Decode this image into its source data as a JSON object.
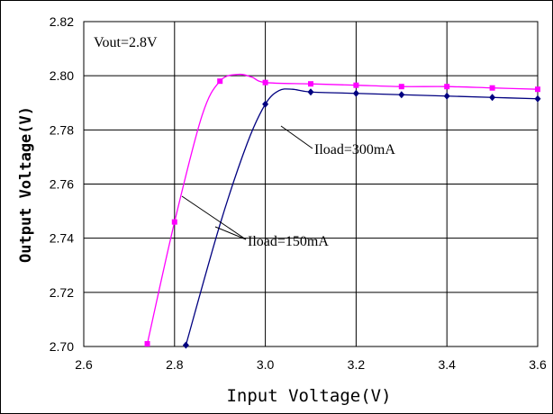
{
  "chart_data": {
    "type": "line",
    "title": "",
    "xlabel": "Input Voltage(V)",
    "ylabel": "Output Voltage(V)",
    "xlim": [
      2.6,
      3.6
    ],
    "ylim": [
      2.7,
      2.82
    ],
    "x_ticks": [
      "2.6",
      "2.8",
      "3.0",
      "3.2",
      "3.4",
      "3.6"
    ],
    "y_ticks": [
      "2.70",
      "2.72",
      "2.74",
      "2.76",
      "2.78",
      "2.80",
      "2.82"
    ],
    "grid": true,
    "annotations": {
      "vout": "Vout=2.8V",
      "iload_300": "Iload=300mA",
      "iload_150": "Iload=150mA"
    },
    "series": [
      {
        "color": "#ff00ff",
        "marker": "square",
        "points": [
          [
            2.74,
            2.701
          ],
          [
            2.8,
            2.746
          ],
          [
            2.9,
            2.798
          ],
          [
            3.0,
            2.7975
          ],
          [
            3.1,
            2.797
          ],
          [
            3.2,
            2.7965
          ],
          [
            3.3,
            2.796
          ],
          [
            3.4,
            2.796
          ],
          [
            3.5,
            2.7955
          ],
          [
            3.6,
            2.795
          ]
        ],
        "curve": [
          [
            2.74,
            2.701
          ],
          [
            2.8,
            2.746
          ],
          [
            2.86,
            2.785
          ],
          [
            2.9,
            2.798
          ],
          [
            2.94,
            2.8005
          ],
          [
            2.97,
            2.7995
          ],
          [
            3.0,
            2.7975
          ],
          [
            3.1,
            2.797
          ],
          [
            3.2,
            2.7965
          ],
          [
            3.3,
            2.796
          ],
          [
            3.4,
            2.796
          ],
          [
            3.5,
            2.7955
          ],
          [
            3.6,
            2.795
          ]
        ]
      },
      {
        "color": "#000080",
        "marker": "diamond",
        "points": [
          [
            2.825,
            2.7005
          ],
          [
            3.0,
            2.7895
          ],
          [
            3.1,
            2.794
          ],
          [
            3.2,
            2.7935
          ],
          [
            3.3,
            2.793
          ],
          [
            3.4,
            2.7925
          ],
          [
            3.5,
            2.792
          ],
          [
            3.6,
            2.7915
          ]
        ],
        "curve": [
          [
            2.825,
            2.7005
          ],
          [
            2.9,
            2.745
          ],
          [
            2.96,
            2.775
          ],
          [
            3.0,
            2.7895
          ],
          [
            3.03,
            2.7945
          ],
          [
            3.06,
            2.795
          ],
          [
            3.1,
            2.794
          ],
          [
            3.2,
            2.7935
          ],
          [
            3.3,
            2.793
          ],
          [
            3.4,
            2.7925
          ],
          [
            3.5,
            2.792
          ],
          [
            3.6,
            2.7915
          ]
        ]
      }
    ]
  }
}
